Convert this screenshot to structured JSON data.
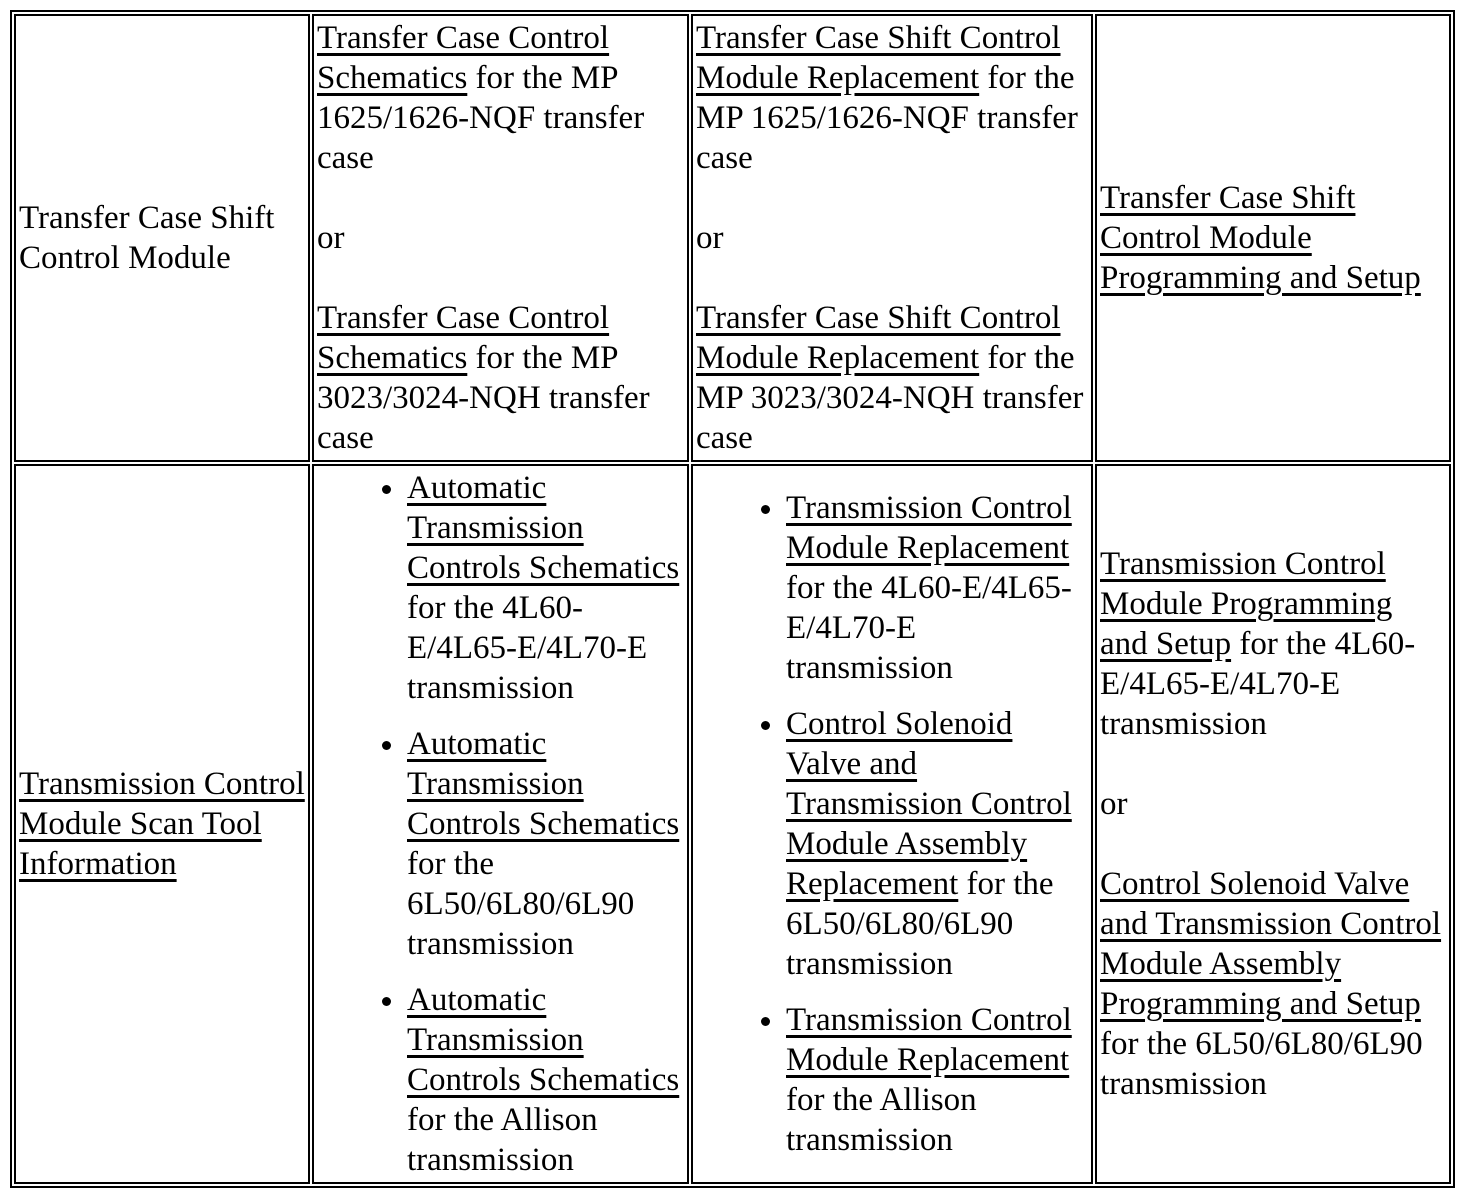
{
  "page": {
    "background_color": "#ffffff",
    "text_color": "#000000",
    "link_color": "#000000"
  },
  "table": {
    "rows": [
      {
        "cells": [
          {
            "paragraphs": [
              {
                "segments": [
                  {
                    "text": "Transfer Case Shift Control Module",
                    "link": false
                  }
                ]
              }
            ]
          },
          {
            "paragraphs": [
              {
                "segments": [
                  {
                    "text": "Transfer Case Control Schematics",
                    "link": true
                  },
                  {
                    "text": " for the MP 1625/1626-NQF transfer case",
                    "link": false
                  }
                ]
              },
              {
                "segments": [
                  {
                    "text": "or",
                    "link": false
                  }
                ]
              },
              {
                "segments": [
                  {
                    "text": "Transfer Case Control Schematics",
                    "link": true
                  },
                  {
                    "text": " for the MP 3023/3024-NQH transfer case",
                    "link": false
                  }
                ]
              }
            ]
          },
          {
            "paragraphs": [
              {
                "segments": [
                  {
                    "text": "Transfer Case Shift Control Module Replacement",
                    "link": true
                  },
                  {
                    "text": " for the MP 1625/1626-NQF transfer case",
                    "link": false
                  }
                ]
              },
              {
                "segments": [
                  {
                    "text": "or",
                    "link": false
                  }
                ]
              },
              {
                "segments": [
                  {
                    "text": "Transfer Case Shift Control Module Replacement",
                    "link": true
                  },
                  {
                    "text": " for the MP 3023/3024-NQH transfer case",
                    "link": false
                  }
                ]
              }
            ]
          },
          {
            "paragraphs": [
              {
                "segments": [
                  {
                    "text": "Transfer Case Shift Control Module Programming and Setup",
                    "link": true
                  }
                ]
              }
            ]
          }
        ]
      },
      {
        "cells": [
          {
            "paragraphs": [
              {
                "segments": [
                  {
                    "text": "Transmission Control Module Scan Tool Information",
                    "link": true
                  }
                ]
              }
            ]
          },
          {
            "list": {
              "items": [
                {
                  "segments": [
                    {
                      "text": "Automatic Transmission Controls Schematics",
                      "link": true
                    },
                    {
                      "text": " for the 4L60-E/4L65-E/4L70-E transmission",
                      "link": false
                    }
                  ]
                },
                {
                  "segments": [
                    {
                      "text": "Automatic Transmission Controls Schematics",
                      "link": true
                    },
                    {
                      "text": " for the 6L50/6L80/6L90 transmission",
                      "link": false
                    }
                  ]
                },
                {
                  "segments": [
                    {
                      "text": "Automatic Transmission Controls Schematics",
                      "link": true
                    },
                    {
                      "text": " for the Allison transmission",
                      "link": false
                    }
                  ]
                }
              ]
            }
          },
          {
            "list": {
              "items": [
                {
                  "segments": [
                    {
                      "text": "Transmission Control Module Replacement",
                      "link": true
                    },
                    {
                      "text": " for the 4L60-E/4L65-E/4L70-E transmission",
                      "link": false
                    }
                  ]
                },
                {
                  "segments": [
                    {
                      "text": "Control Solenoid Valve and Transmission Control Module Assembly Replacement",
                      "link": true
                    },
                    {
                      "text": " for the 6L50/6L80/6L90 transmission",
                      "link": false
                    }
                  ]
                },
                {
                  "segments": [
                    {
                      "text": "Transmission Control Module Replacement",
                      "link": true
                    },
                    {
                      "text": " for the Allison transmission",
                      "link": false
                    }
                  ]
                }
              ]
            }
          },
          {
            "paragraphs": [
              {
                "segments": [
                  {
                    "text": "Transmission Control Module Programming and Setup",
                    "link": true
                  },
                  {
                    "text": " for the 4L60-E/4L65-E/4L70-E transmission",
                    "link": false
                  }
                ]
              },
              {
                "segments": [
                  {
                    "text": "or",
                    "link": false
                  }
                ]
              },
              {
                "segments": [
                  {
                    "text": "Control Solenoid Valve and Transmission Control Module Assembly Programming and Setup",
                    "link": true
                  },
                  {
                    "text": " for the 6L50/6L80/6L90 transmission",
                    "link": false
                  }
                ]
              }
            ]
          }
        ]
      }
    ]
  }
}
